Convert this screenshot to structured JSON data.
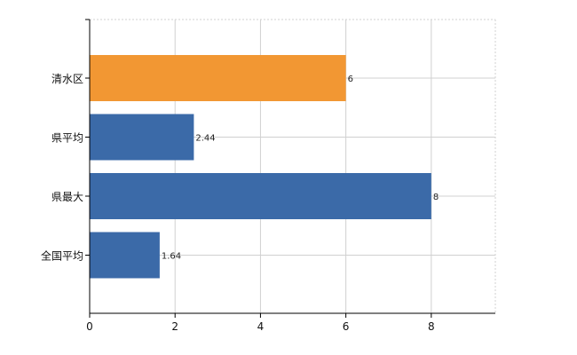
{
  "chart_data": {
    "type": "bar",
    "orientation": "horizontal",
    "categories": [
      "清水区",
      "県平均",
      "県最大",
      "全国平均"
    ],
    "values": [
      6,
      2.44,
      8,
      1.64
    ],
    "value_labels": [
      "6",
      "2.44",
      "8",
      "1.64"
    ],
    "highlight_category": "清水区",
    "xlim": [
      0,
      9.5
    ],
    "xticks": [
      0,
      2,
      4,
      6,
      8
    ],
    "xtick_labels": [
      "0",
      "2",
      "4",
      "6",
      "8"
    ],
    "grid": true,
    "legend": "none",
    "colors": {
      "highlight": "#f29733",
      "default": "#3b6aa8",
      "grid": "#d0d0d0",
      "axis": "#000000"
    }
  }
}
